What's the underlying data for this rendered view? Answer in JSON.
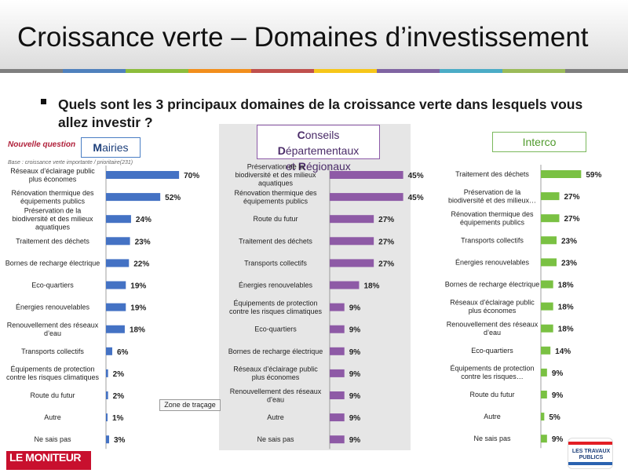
{
  "header": {
    "title": "Croissance verte – Domaines d’investissement",
    "colorbar": [
      "#7f7f7f",
      "#4f81bd",
      "#8cbd3c",
      "#f28e1c",
      "#c0504d",
      "#f6c61a",
      "#8064a2",
      "#4bacc6",
      "#9bbb59",
      "#7f7f7f"
    ]
  },
  "question": "Quels sont les 3 principaux domaines de la croissance verte dans lesquels vous allez investir ?",
  "nouvelle_question": "Nouvelle question",
  "base_note": "Base : croissance verte importante / prioritaire(231)",
  "groups": {
    "mairies": {
      "title_first": "M",
      "title_rest": "airies",
      "color": "#4472c4"
    },
    "cd": {
      "title_line1_a": "C",
      "title_line1_b": "onseils ",
      "title_line1_c": "D",
      "title_line1_d": "épartementaux",
      "title_line2_a": "et ",
      "title_line2_b": "R",
      "title_line2_c": "égionaux",
      "color": "#8e5aa6"
    },
    "interco": {
      "title": "Interco",
      "color": "#7ac143"
    }
  },
  "tooltip": "Zone de traçage",
  "logos": {
    "moniteur": "LE MONITEUR",
    "travaux_publics": "LES TRAVAUX PUBLICS"
  },
  "chart_data": [
    {
      "type": "bar",
      "orientation": "horizontal",
      "title": "Mairies",
      "categories": [
        "Réseaux d’éclairage public plus économes",
        "Rénovation thermique des équipements publics",
        "Préservation de la biodiversité et des milieux aquatiques",
        "Traitement des déchets",
        "Bornes de recharge électrique",
        "Eco-quartiers",
        "Énergies renouvelables",
        "Renouvellement des réseaux d’eau",
        "Transports collectifs",
        "Équipements de protection contre les risques climatiques",
        "Route du futur",
        "Autre",
        "Ne sais pas"
      ],
      "values": [
        70,
        52,
        24,
        23,
        22,
        19,
        19,
        18,
        6,
        2,
        2,
        1,
        3
      ],
      "unit": "%"
    },
    {
      "type": "bar",
      "orientation": "horizontal",
      "title": "Conseils Départementaux et Régionaux",
      "categories": [
        "Préservation de la biodiversité et des milieux aquatiques",
        "Rénovation thermique des équipements publics",
        "Route du futur",
        "Traitement des déchets",
        "Transports collectifs",
        "Énergies renouvelables",
        "Équipements de protection contre les risques climatiques",
        "Eco-quartiers",
        "Bornes de recharge électrique",
        "Réseaux d’éclairage public plus économes",
        "Renouvellement des réseaux d’eau",
        "Autre",
        "Ne sais pas"
      ],
      "values": [
        45,
        45,
        27,
        27,
        27,
        18,
        9,
        9,
        9,
        9,
        9,
        9,
        9
      ],
      "unit": "%"
    },
    {
      "type": "bar",
      "orientation": "horizontal",
      "title": "Interco",
      "categories": [
        "Traitement des déchets",
        "Préservation de la biodiversité et des milieux…",
        "Rénovation thermique des équipements publics",
        "Transports collectifs",
        "Énergies renouvelables",
        "Bornes de recharge électrique",
        "Réseaux d’éclairage public plus économes",
        "Renouvellement des réseaux d’eau",
        "Eco-quartiers",
        "Équipements de protection contre les risques…",
        "Route du futur",
        "Autre",
        "Ne sais pas"
      ],
      "values": [
        59,
        27,
        27,
        23,
        23,
        18,
        18,
        18,
        14,
        9,
        9,
        5,
        9
      ],
      "unit": "%"
    }
  ]
}
